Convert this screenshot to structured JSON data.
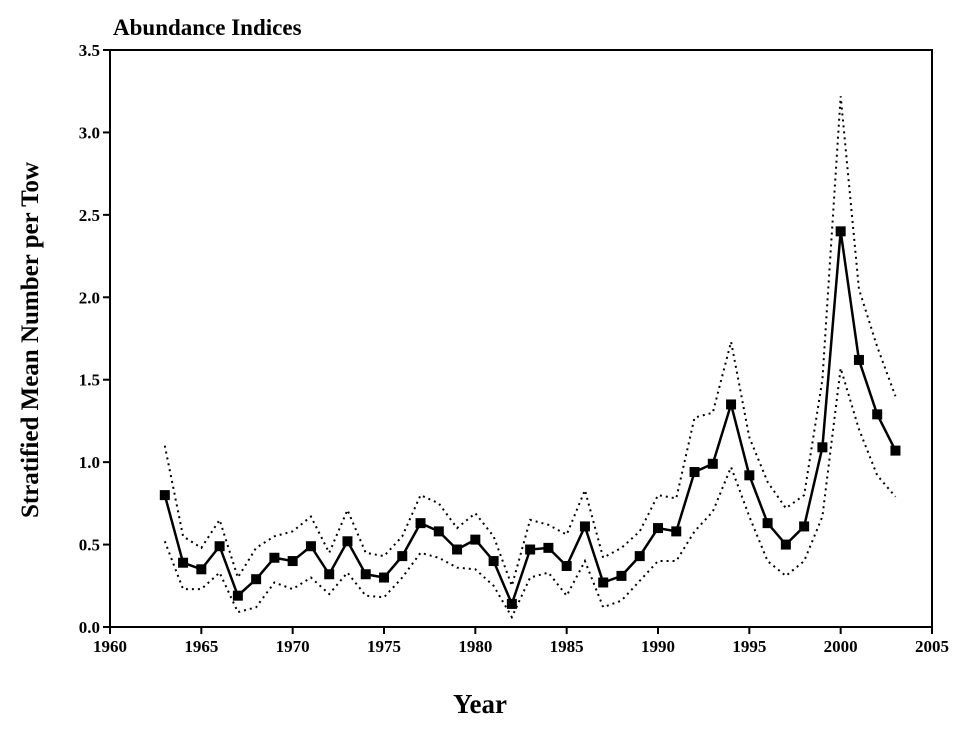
{
  "chart_data": {
    "type": "line",
    "title": "Abundance Indices",
    "x_label": "Year",
    "y_label": "Stratified Mean Number per Tow",
    "x": [
      1963,
      1964,
      1965,
      1966,
      1967,
      1968,
      1969,
      1970,
      1971,
      1972,
      1973,
      1974,
      1975,
      1976,
      1977,
      1978,
      1979,
      1980,
      1981,
      1982,
      1983,
      1984,
      1985,
      1986,
      1987,
      1988,
      1989,
      1990,
      1991,
      1992,
      1993,
      1994,
      1995,
      1996,
      1997,
      1998,
      1999,
      2000,
      2001,
      2002,
      2003
    ],
    "series": [
      {
        "color": "#000000",
        "line_style": "solid",
        "marker": "square",
        "values": [
          0.8,
          0.39,
          0.35,
          0.49,
          0.19,
          0.29,
          0.42,
          0.4,
          0.49,
          0.32,
          0.52,
          0.32,
          0.3,
          0.43,
          0.63,
          0.58,
          0.47,
          0.53,
          0.4,
          0.14,
          0.47,
          0.48,
          0.37,
          0.61,
          0.27,
          0.31,
          0.43,
          0.6,
          0.58,
          0.94,
          0.99,
          1.35,
          0.92,
          0.63,
          0.5,
          0.61,
          1.09,
          2.4,
          1.62,
          1.29,
          1.07
        ]
      },
      {
        "color": "#000000",
        "line_style": "dotted",
        "marker": "none",
        "values": [
          1.1,
          0.55,
          0.48,
          0.65,
          0.3,
          0.48,
          0.55,
          0.58,
          0.67,
          0.45,
          0.71,
          0.45,
          0.43,
          0.55,
          0.8,
          0.75,
          0.6,
          0.69,
          0.55,
          0.25,
          0.65,
          0.62,
          0.56,
          0.83,
          0.42,
          0.48,
          0.58,
          0.8,
          0.78,
          1.27,
          1.3,
          1.73,
          1.15,
          0.88,
          0.72,
          0.8,
          1.5,
          3.22,
          2.05,
          1.7,
          1.4
        ]
      },
      {
        "color": "#000000",
        "line_style": "dotted",
        "marker": "none",
        "values": [
          0.52,
          0.23,
          0.23,
          0.33,
          0.09,
          0.12,
          0.27,
          0.23,
          0.3,
          0.2,
          0.33,
          0.19,
          0.18,
          0.3,
          0.45,
          0.42,
          0.36,
          0.35,
          0.25,
          0.06,
          0.3,
          0.33,
          0.19,
          0.4,
          0.12,
          0.16,
          0.28,
          0.4,
          0.4,
          0.58,
          0.7,
          0.97,
          0.67,
          0.4,
          0.31,
          0.4,
          0.67,
          1.57,
          1.2,
          0.92,
          0.79
        ]
      }
    ],
    "xlim": [
      1960,
      2005
    ],
    "xticks": [
      1960,
      1965,
      1970,
      1975,
      1980,
      1985,
      1990,
      1995,
      2000,
      2005
    ],
    "ylim": [
      0,
      3.5
    ],
    "yticks": [
      {
        "value": 0,
        "label": "0.0"
      },
      0.5,
      {
        "value": 1,
        "label": "1.0"
      },
      1.5,
      {
        "value": 2,
        "label": "2.0"
      },
      2.5,
      {
        "value": 3,
        "label": "3.0"
      },
      3.5
    ],
    "grid": false
  }
}
